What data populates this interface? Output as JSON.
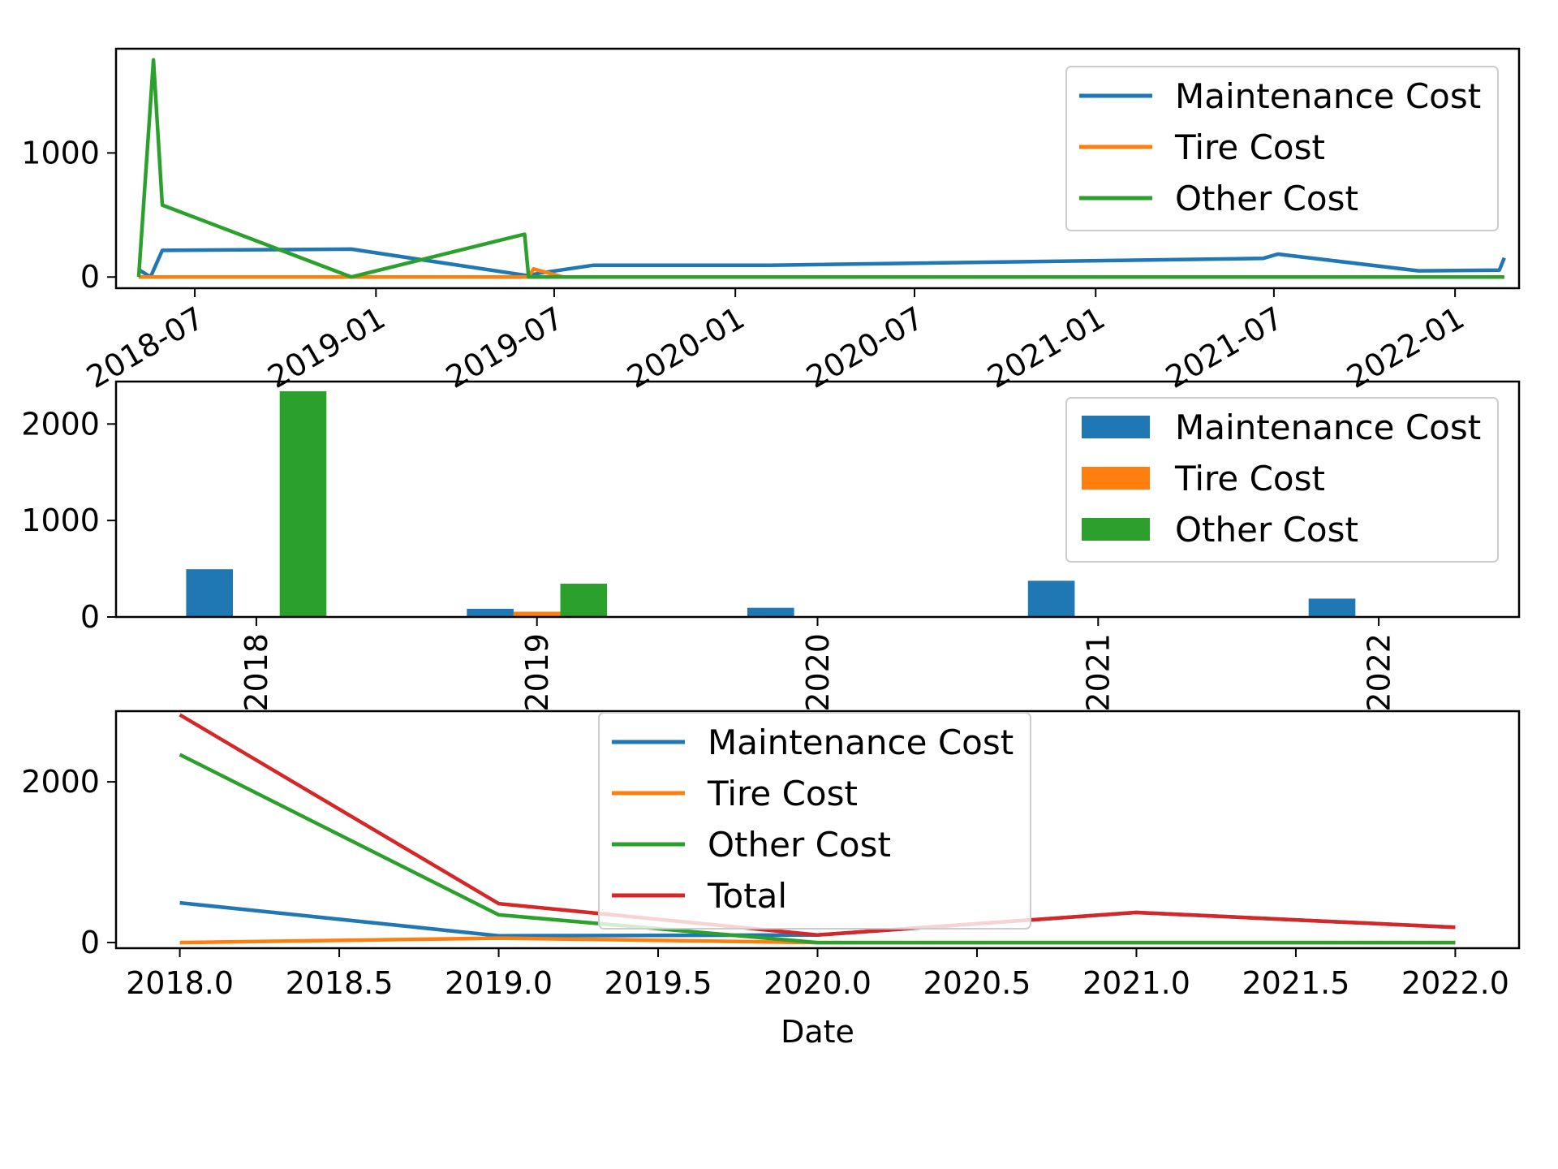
{
  "chart_data": [
    {
      "type": "line",
      "title": "",
      "xlabel": "",
      "ylabel": "",
      "x_type": "date",
      "xlim": [
        "2018-04-12",
        "2022-03-07"
      ],
      "ylim": [
        -90,
        1840
      ],
      "xticks": [
        "2018-07-01",
        "2019-01-01",
        "2019-07-01",
        "2020-01-01",
        "2020-07-01",
        "2021-01-01",
        "2021-07-01",
        "2022-01-01"
      ],
      "xtick_labels": [
        "2018-07",
        "2019-01",
        "2019-07",
        "2020-01",
        "2020-07",
        "2021-01",
        "2021-07",
        "2022-01"
      ],
      "yticks": [
        0,
        1000
      ],
      "ytick_labels": [
        "0",
        "1000"
      ],
      "legend_position": "upper right",
      "series": [
        {
          "name": "Maintenance Cost",
          "color": "#1f77b4",
          "points": [
            [
              "2018-05-05",
              60
            ],
            [
              "2018-05-17",
              0
            ],
            [
              "2018-05-29",
              215
            ],
            [
              "2018-12-07",
              225
            ],
            [
              "2019-06-05",
              10
            ],
            [
              "2019-06-15",
              30
            ],
            [
              "2019-08-10",
              95
            ],
            [
              "2020-02-05",
              95
            ],
            [
              "2021-06-20",
              150
            ],
            [
              "2021-07-05",
              185
            ],
            [
              "2021-11-25",
              50
            ],
            [
              "2022-02-15",
              55
            ],
            [
              "2022-02-20",
              155
            ]
          ]
        },
        {
          "name": "Tire Cost",
          "color": "#ff7f0e",
          "points": [
            [
              "2018-05-05",
              0
            ],
            [
              "2019-06-05",
              0
            ],
            [
              "2019-06-10",
              65
            ],
            [
              "2019-07-10",
              0
            ],
            [
              "2022-02-20",
              0
            ]
          ]
        },
        {
          "name": "Other Cost",
          "color": "#2ca02c",
          "points": [
            [
              "2018-05-05",
              0
            ],
            [
              "2018-05-20",
              1750
            ],
            [
              "2018-05-29",
              580
            ],
            [
              "2018-12-07",
              0
            ],
            [
              "2019-06-01",
              345
            ],
            [
              "2019-06-05",
              0
            ],
            [
              "2022-02-20",
              0
            ]
          ]
        }
      ]
    },
    {
      "type": "bar",
      "title": "",
      "xlabel": "",
      "ylabel": "",
      "categories": [
        "2018",
        "2019",
        "2020",
        "2021",
        "2022"
      ],
      "category_labels": [
        "2018",
        "2019",
        "2020",
        "2021",
        "2022"
      ],
      "ylim": [
        0,
        2440
      ],
      "yticks": [
        0,
        1000,
        2000
      ],
      "ytick_labels": [
        "0",
        "1000",
        "2000"
      ],
      "legend_position": "upper right",
      "series": [
        {
          "name": "Maintenance Cost",
          "color": "#1f77b4",
          "values": [
            495,
            85,
            95,
            375,
            190
          ]
        },
        {
          "name": "Tire Cost",
          "color": "#ff7f0e",
          "values": [
            0,
            55,
            0,
            0,
            0
          ]
        },
        {
          "name": "Other Cost",
          "color": "#2ca02c",
          "values": [
            2340,
            345,
            0,
            0,
            0
          ]
        }
      ]
    },
    {
      "type": "line",
      "title": "",
      "xlabel": "Date",
      "ylabel": "",
      "x": [
        2018.0,
        2019.0,
        2020.0,
        2021.0,
        2022.0
      ],
      "xlim": [
        2017.8,
        2022.2
      ],
      "ylim": [
        -70,
        2880
      ],
      "xticks": [
        2018.0,
        2018.5,
        2019.0,
        2019.5,
        2020.0,
        2020.5,
        2021.0,
        2021.5,
        2022.0
      ],
      "xtick_labels": [
        "2018.0",
        "2018.5",
        "2019.0",
        "2019.5",
        "2020.0",
        "2020.5",
        "2021.0",
        "2021.5",
        "2022.0"
      ],
      "yticks": [
        0,
        2000
      ],
      "ytick_labels": [
        "0",
        "2000"
      ],
      "legend_position": "upper center",
      "series": [
        {
          "name": "Maintenance Cost",
          "color": "#1f77b4",
          "values": [
            495,
            85,
            95,
            375,
            190
          ]
        },
        {
          "name": "Tire Cost",
          "color": "#ff7f0e",
          "values": [
            0,
            55,
            0,
            0,
            0
          ]
        },
        {
          "name": "Other Cost",
          "color": "#2ca02c",
          "values": [
            2340,
            345,
            0,
            0,
            0
          ]
        },
        {
          "name": "Total",
          "color": "#d62728",
          "values": [
            2835,
            485,
            95,
            375,
            190
          ]
        }
      ]
    }
  ]
}
